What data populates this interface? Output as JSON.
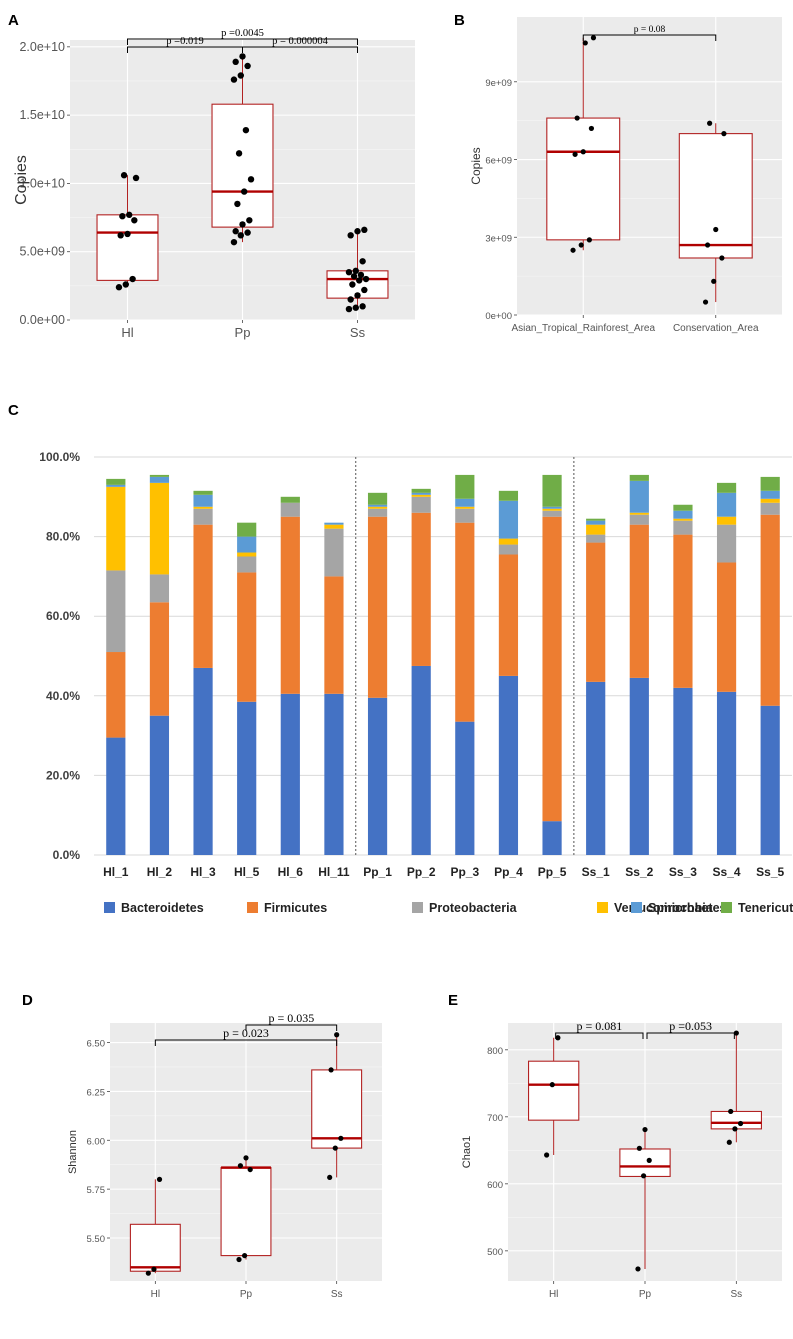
{
  "chart_data": [
    {
      "panel": "A",
      "type": "boxplot",
      "ylabel": "Copies",
      "categories": [
        "Hl",
        "Pp",
        "Ss"
      ],
      "yticks": [
        "0.0e+00",
        "5.0e+09",
        "1.0e+10",
        "1.5e+10",
        "2.0e+10"
      ],
      "ylim": [
        0,
        20500000000.0
      ],
      "boxes": [
        {
          "q1": 2900000000.0,
          "median": 6400000000.0,
          "q3": 7700000000.0,
          "whisker_low": 2400000000.0,
          "whisker_high": 10600000000.0,
          "points": [
            2400000000.0,
            2600000000.0,
            3000000000.0,
            6200000000.0,
            6300000000.0,
            7300000000.0,
            7600000000.0,
            7700000000.0,
            10400000000.0,
            10600000000.0
          ]
        },
        {
          "q1": 6800000000.0,
          "median": 9400000000.0,
          "q3": 15800000000.0,
          "whisker_low": 5700000000.0,
          "whisker_high": 19300000000.0,
          "points": [
            5700000000.0,
            6200000000.0,
            6400000000.0,
            6500000000.0,
            7000000000.0,
            7300000000.0,
            8500000000.0,
            9400000000.0,
            10300000000.0,
            12200000000.0,
            13900000000.0,
            17600000000.0,
            17900000000.0,
            18600000000.0,
            18900000000.0,
            19300000000.0
          ]
        },
        {
          "q1": 1600000000.0,
          "median": 3000000000.0,
          "q3": 3600000000.0,
          "whisker_low": 800000000.0,
          "whisker_high": 6600000000.0,
          "points": [
            800000000.0,
            900000000.0,
            1000000000.0,
            1500000000.0,
            1800000000.0,
            2200000000.0,
            2600000000.0,
            2900000000.0,
            3000000000.0,
            3200000000.0,
            3300000000.0,
            3500000000.0,
            3600000000.0,
            4300000000.0,
            6200000000.0,
            6500000000.0,
            6600000000.0
          ]
        }
      ],
      "comparisons": [
        {
          "from": 0,
          "to": 1,
          "label": "p =0.019"
        },
        {
          "from": 1,
          "to": 2,
          "label": "p = 0.000004"
        },
        {
          "from": 0,
          "to": 2,
          "label": "p =0.0045"
        }
      ]
    },
    {
      "panel": "B",
      "type": "boxplot",
      "ylabel": "Copies",
      "categories": [
        "Asian_Tropical_Rainforest_Area",
        "Conservation_Area"
      ],
      "yticks": [
        "0e+00",
        "3e+09",
        "6e+09",
        "9e+09"
      ],
      "ylim": [
        0,
        11500000000.0
      ],
      "boxes": [
        {
          "q1": 2900000000.0,
          "median": 6300000000.0,
          "q3": 7600000000.0,
          "whisker_low": 2500000000.0,
          "whisker_high": 10700000000.0,
          "points": [
            2500000000.0,
            2700000000.0,
            2900000000.0,
            6200000000.0,
            6300000000.0,
            7200000000.0,
            7600000000.0,
            10500000000.0,
            10700000000.0
          ]
        },
        {
          "q1": 2200000000.0,
          "median": 2700000000.0,
          "q3": 7000000000.0,
          "whisker_low": 500000000.0,
          "whisker_high": 7400000000.0,
          "points": [
            500000000.0,
            1300000000.0,
            2200000000.0,
            2700000000.0,
            3300000000.0,
            7000000000.0,
            7400000000.0
          ]
        }
      ],
      "comparisons": [
        {
          "from": 0,
          "to": 1,
          "label": "p = 0.08"
        }
      ]
    },
    {
      "panel": "C",
      "type": "stacked_bar",
      "yticks": [
        "0.0%",
        "20.0%",
        "40.0%",
        "60.0%",
        "80.0%",
        "100.0%"
      ],
      "ylim": [
        0,
        100
      ],
      "categories": [
        "Hl_1",
        "Hl_2",
        "Hl_3",
        "Hl_5",
        "Hl_6",
        "Hl_11",
        "Pp_1",
        "Pp_2",
        "Pp_3",
        "Pp_4",
        "Pp_5",
        "Ss_1",
        "Ss_2",
        "Ss_3",
        "Ss_4",
        "Ss_5"
      ],
      "group_separators_after": [
        5,
        10
      ],
      "series": [
        {
          "name": "Bacteroidetes",
          "color": "#4472C4",
          "values": [
            29.5,
            35,
            47,
            38.5,
            40.5,
            40.5,
            39.5,
            47.5,
            33.5,
            45,
            8.5,
            43.5,
            44.5,
            42,
            41,
            37.5
          ]
        },
        {
          "name": "Firmicutes",
          "color": "#ED7D31",
          "values": [
            21.5,
            28.5,
            36,
            32.5,
            44.5,
            29.5,
            45.5,
            38.5,
            50,
            30.5,
            76.5,
            35,
            38.5,
            38.5,
            32.5,
            48
          ]
        },
        {
          "name": "Proteobacteria",
          "color": "#A5A5A5",
          "values": [
            20.5,
            7,
            4,
            4,
            3.5,
            12,
            2,
            4,
            3.5,
            2.5,
            1.5,
            2,
            2.5,
            3.5,
            9.5,
            3
          ]
        },
        {
          "name": "Verrucomicrobia",
          "color": "#FFC000",
          "values": [
            21,
            23,
            0.5,
            1,
            0,
            1,
            0.5,
            0.5,
            0.5,
            1.5,
            0.5,
            2.5,
            0.5,
            0.5,
            2,
            1
          ]
        },
        {
          "name": "Spirochaetes",
          "color": "#5B9BD5",
          "values": [
            0.5,
            1.5,
            3,
            4,
            0,
            0.5,
            0.5,
            0.5,
            2,
            9.5,
            0.5,
            1,
            8,
            2,
            6,
            2
          ]
        },
        {
          "name": "Tenericutes",
          "color": "#70AD47",
          "values": [
            1.5,
            0.5,
            1,
            3.5,
            1.5,
            0,
            3,
            1,
            6,
            2.5,
            8,
            0.5,
            1.5,
            1.5,
            2.5,
            3.5
          ]
        }
      ]
    },
    {
      "panel": "D",
      "type": "boxplot",
      "ylabel": "Shannon",
      "categories": [
        "Hl",
        "Pp",
        "Ss"
      ],
      "yticks": [
        "5.50",
        "5.75",
        "6.00",
        "6.25",
        "6.50"
      ],
      "ytick_values": [
        5.5,
        5.75,
        6.0,
        6.25,
        6.5
      ],
      "ylim": [
        5.28,
        6.6
      ],
      "boxes": [
        {
          "q1": 5.33,
          "median": 5.35,
          "q3": 5.57,
          "whisker_low": 5.32,
          "whisker_high": 5.8,
          "points": [
            5.32,
            5.34,
            5.8
          ]
        },
        {
          "q1": 5.41,
          "median": 5.86,
          "q3": 5.86,
          "whisker_low": 5.39,
          "whisker_high": 5.91,
          "points": [
            5.39,
            5.41,
            5.85,
            5.87,
            5.91
          ]
        },
        {
          "q1": 5.96,
          "median": 6.01,
          "q3": 6.36,
          "whisker_low": 5.81,
          "whisker_high": 6.54,
          "points": [
            5.81,
            5.96,
            6.01,
            6.36,
            6.54
          ]
        }
      ],
      "comparisons": [
        {
          "from": 1,
          "to": 2,
          "label": "p = 0.035"
        },
        {
          "from": 0,
          "to": 2,
          "label": "p = 0.023"
        }
      ]
    },
    {
      "panel": "E",
      "type": "boxplot",
      "ylabel": "Chao1",
      "categories": [
        "Hl",
        "Pp",
        "Ss"
      ],
      "yticks": [
        "500",
        "600",
        "700",
        "800"
      ],
      "ytick_values": [
        500,
        600,
        700,
        800
      ],
      "ylim": [
        455,
        840
      ],
      "boxes": [
        {
          "q1": 695,
          "median": 748,
          "q3": 783,
          "whisker_low": 643,
          "whisker_high": 818,
          "points": [
            643,
            748,
            818
          ]
        },
        {
          "q1": 611,
          "median": 626,
          "q3": 652,
          "whisker_low": 473,
          "whisker_high": 681,
          "points": [
            473,
            612,
            635,
            653,
            681
          ]
        },
        {
          "q1": 682,
          "median": 691,
          "q3": 708,
          "whisker_low": 662,
          "whisker_high": 825,
          "points": [
            662,
            682,
            690,
            708,
            825
          ]
        }
      ],
      "comparisons": [
        {
          "from": 0,
          "to": 1,
          "label": "p = 0.081"
        },
        {
          "from": 1,
          "to": 2,
          "label": "p =0.053"
        }
      ]
    }
  ],
  "panel_labels": {
    "a": "A",
    "b": "B",
    "c": "C",
    "d": "D",
    "e": "E"
  },
  "colors": {
    "panel_bg": "#EBEBEB",
    "grid": "#ffffff",
    "box": "#B22222",
    "median": "#B00000",
    "point": "#000000"
  }
}
